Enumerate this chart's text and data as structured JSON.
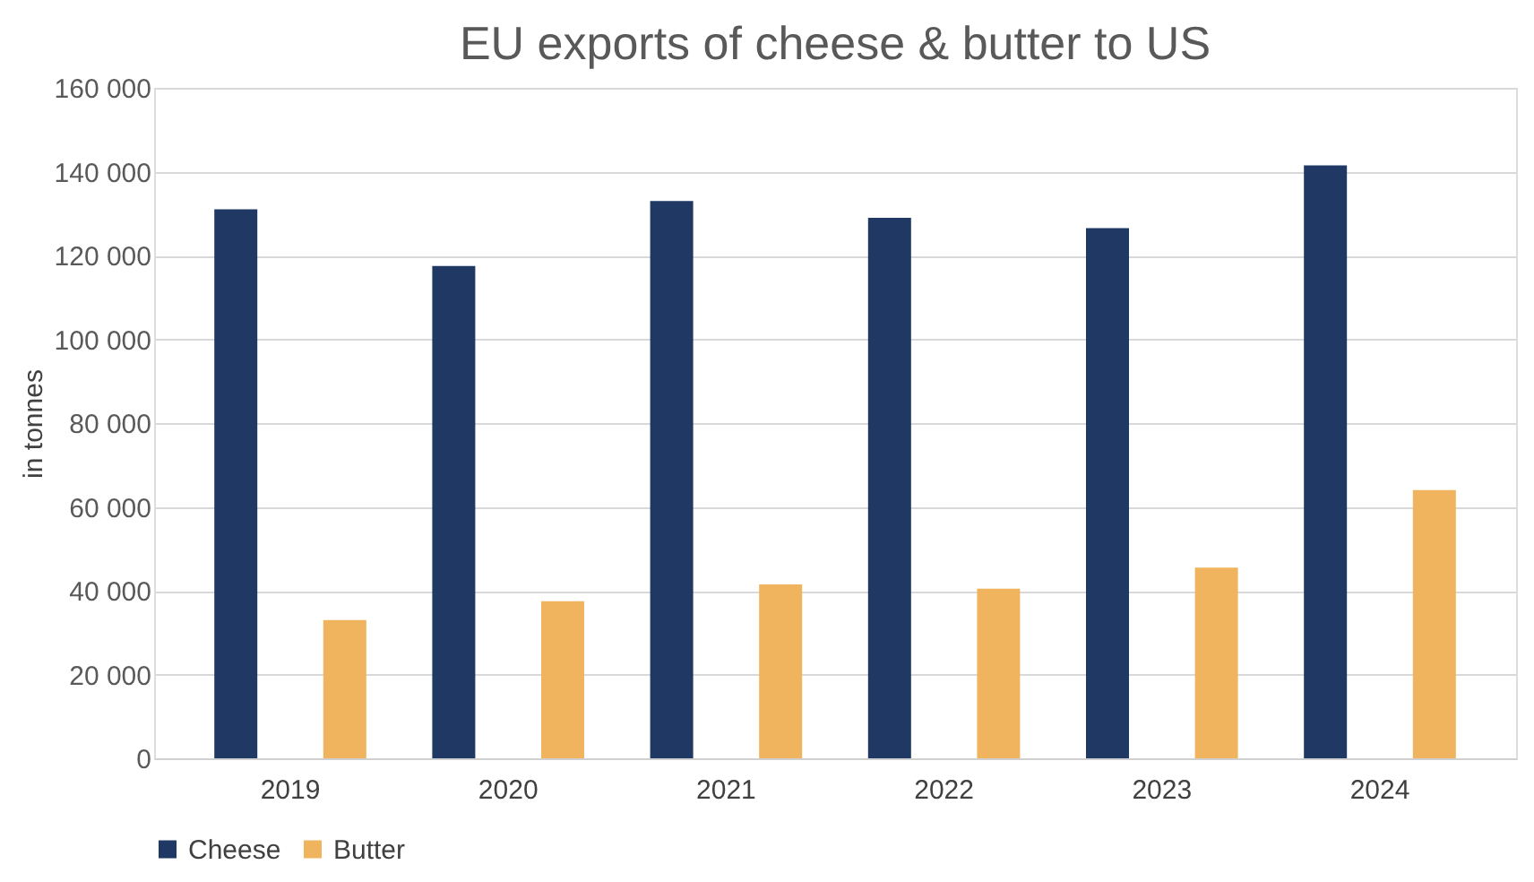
{
  "chart_data": {
    "type": "bar",
    "title": "EU exports of cheese & butter to US",
    "ylabel": "in tonnes",
    "categories": [
      "2019",
      "2020",
      "2021",
      "2022",
      "2023",
      "2024"
    ],
    "series": [
      {
        "name": "Cheese",
        "color": "#1f3864",
        "values": [
          131000,
          117500,
          133000,
          129000,
          126500,
          141500
        ]
      },
      {
        "name": "Butter",
        "color": "#f0b45e",
        "values": [
          33000,
          37500,
          41500,
          40500,
          45500,
          64000
        ]
      }
    ],
    "ylim": [
      0,
      160000
    ],
    "yticks": [
      {
        "value": 0,
        "label": "0"
      },
      {
        "value": 20000,
        "label": "20 000"
      },
      {
        "value": 40000,
        "label": "40 000"
      },
      {
        "value": 60000,
        "label": "60 000"
      },
      {
        "value": 80000,
        "label": "80 000"
      },
      {
        "value": 100000,
        "label": "100 000"
      },
      {
        "value": 120000,
        "label": "120 000"
      },
      {
        "value": 140000,
        "label": "140 000"
      },
      {
        "value": 160000,
        "label": "160 000"
      }
    ],
    "grid": "y",
    "legend": "bottom"
  }
}
